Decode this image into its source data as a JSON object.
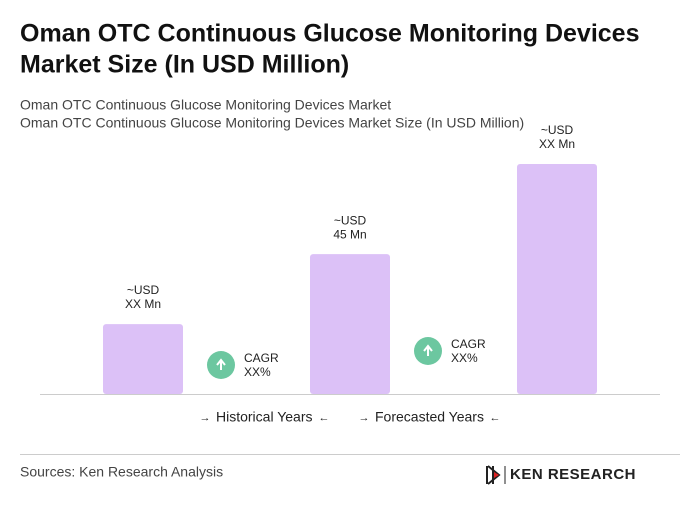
{
  "chart_data": {
    "type": "bar",
    "title": [
      "Oman OTC Continuous Glucose Monitoring Devices",
      "Market Size (In USD Million)"
    ],
    "subtitle": [
      "Oman OTC Continuous Glucose Monitoring Devices Market",
      "Oman OTC Continuous Glucose Monitoring Devices Market Size (In USD Million)"
    ],
    "categories": [
      null,
      null,
      null
    ],
    "values": [
      22.5,
      45,
      74
    ],
    "value_labels": [
      [
        "~USD",
        "XX Mn"
      ],
      [
        "~USD",
        "45 Mn"
      ],
      [
        "~USD",
        "XX Mn"
      ]
    ],
    "color": "#dcc1f7",
    "annotations": [
      [
        "CAGR",
        "XX%"
      ],
      [
        "CAGR",
        "XX%"
      ]
    ],
    "annotation_color": "#6cc7a0",
    "legend": [
      "Historical Years",
      "Forecasted Years"
    ],
    "source": "Sources: Ken Research Analysis",
    "brand": "KEN RESEARCH"
  }
}
